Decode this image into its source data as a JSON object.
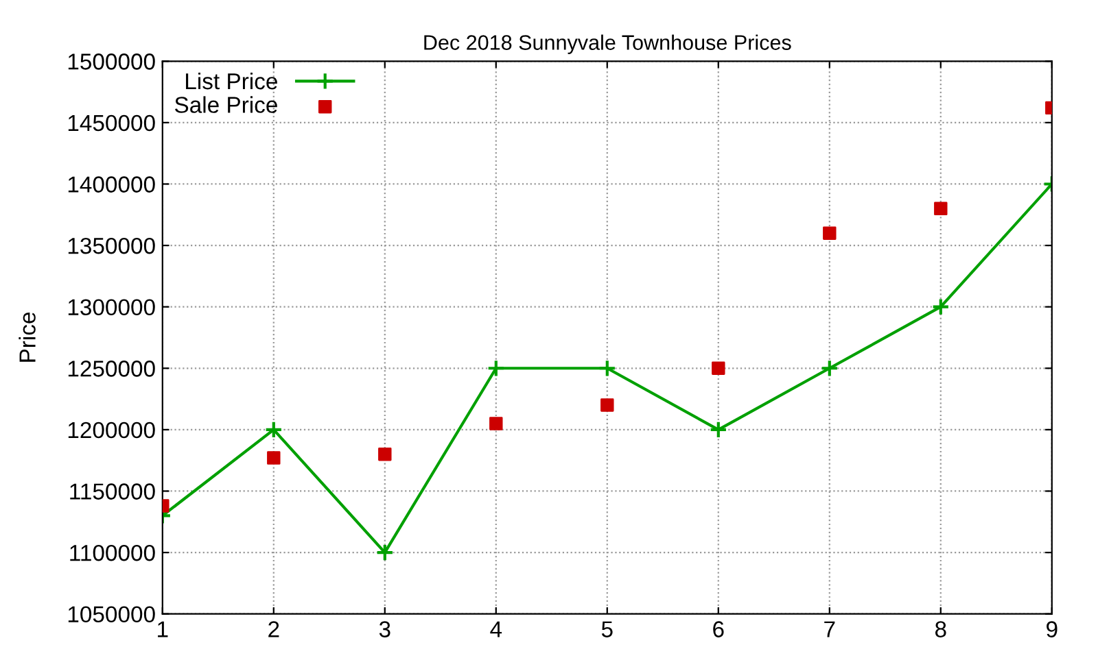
{
  "chart_data": {
    "type": "line",
    "title": "Dec 2018 Sunnyvale Townhouse Prices",
    "ylabel": "Price",
    "x": [
      1,
      2,
      3,
      4,
      5,
      6,
      7,
      8,
      9
    ],
    "series": [
      {
        "name": "List Price",
        "color": "#00a000",
        "marker": "cross",
        "values": [
          1130000,
          1200000,
          1100000,
          1250000,
          1250000,
          1200000,
          1250000,
          1300000,
          1400000
        ]
      },
      {
        "name": "Sale Price",
        "type": "scatter",
        "color": "#cc0000",
        "marker": "square",
        "values": [
          1138000,
          1177000,
          1180000,
          1205000,
          1220000,
          1250000,
          1360000,
          1380000,
          1462000
        ]
      }
    ],
    "xlim": [
      1,
      9
    ],
    "xticks": [
      1,
      2,
      3,
      4,
      5,
      6,
      7,
      8,
      9
    ],
    "ylim": [
      1050000,
      1500000
    ],
    "yticks": [
      1050000,
      1100000,
      1150000,
      1200000,
      1250000,
      1300000,
      1350000,
      1400000,
      1450000,
      1500000
    ],
    "grid": true,
    "legend": "top left"
  }
}
